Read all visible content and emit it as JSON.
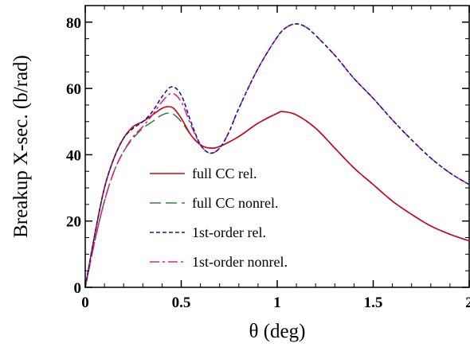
{
  "chart_data": {
    "type": "line",
    "title": "",
    "xlabel": "θ (deg)",
    "ylabel": "Breakup X-sec. (b/rad)",
    "xlim": [
      0,
      2
    ],
    "ylim": [
      0,
      85
    ],
    "xticks": [
      0,
      0.5,
      1,
      1.5,
      2
    ],
    "xtick_labels": [
      "0",
      "0.5",
      "1",
      "1.5",
      "2"
    ],
    "yticks": [
      0,
      20,
      40,
      60,
      80
    ],
    "ytick_labels": [
      "0",
      "20",
      "40",
      "60",
      "80"
    ],
    "grid": false,
    "legend_position": "center",
    "series": [
      {
        "name": "full CC rel.",
        "color": "#d0021b",
        "dash": "solid",
        "x": [
          0,
          0.05,
          0.1,
          0.15,
          0.2,
          0.25,
          0.3,
          0.35,
          0.4,
          0.43,
          0.46,
          0.5,
          0.55,
          0.6,
          0.65,
          0.7,
          0.8,
          0.9,
          1.0,
          1.03,
          1.1,
          1.2,
          1.3,
          1.4,
          1.5,
          1.6,
          1.7,
          1.8,
          1.9,
          2.0
        ],
        "y": [
          0,
          16,
          30,
          39,
          45,
          48.5,
          50,
          52,
          54,
          54.5,
          54,
          51,
          46,
          43,
          42,
          42.5,
          45.5,
          49.5,
          52.5,
          53,
          52,
          48,
          42,
          36,
          31,
          26,
          22,
          18.5,
          16,
          14
        ]
      },
      {
        "name": "full CC nonrel.",
        "color": "#3f7f3f",
        "dash": "longdash",
        "x": [
          0,
          0.05,
          0.1,
          0.15,
          0.2,
          0.25,
          0.3,
          0.35,
          0.4,
          0.45,
          0.5,
          0.55,
          0.6,
          0.65,
          0.7,
          0.8,
          0.9,
          1.0,
          1.03,
          1.1,
          1.2,
          1.3,
          1.4,
          1.5,
          1.6,
          1.7,
          1.8,
          1.9,
          2.0
        ],
        "y": [
          0,
          14,
          26,
          35,
          41,
          45,
          48,
          50,
          52,
          52.5,
          50,
          46,
          43,
          42,
          42.5,
          45.5,
          49.5,
          52.5,
          53,
          52,
          48,
          42,
          36,
          31,
          26,
          22,
          18.5,
          16,
          14
        ]
      },
      {
        "name": "1st-order rel.",
        "color": "#1a1a8c",
        "dash": "shortdash",
        "x": [
          0,
          0.05,
          0.1,
          0.15,
          0.2,
          0.25,
          0.3,
          0.35,
          0.4,
          0.45,
          0.5,
          0.55,
          0.6,
          0.65,
          0.7,
          0.75,
          0.8,
          0.9,
          1.0,
          1.05,
          1.1,
          1.15,
          1.2,
          1.3,
          1.4,
          1.5,
          1.6,
          1.7,
          1.8,
          1.9,
          2.0
        ],
        "y": [
          0,
          16,
          30,
          39,
          45,
          48,
          50,
          53,
          57.5,
          60.5,
          58,
          50,
          43,
          40.5,
          42,
          47,
          54,
          66,
          75.5,
          78.5,
          79.5,
          78.5,
          76,
          70,
          63,
          57,
          50.5,
          44.5,
          39,
          34.5,
          31
        ]
      },
      {
        "name": "1st-order nonrel.",
        "color": "#e0208a",
        "dash": "dashdot",
        "x": [
          0,
          0.05,
          0.1,
          0.15,
          0.2,
          0.25,
          0.3,
          0.35,
          0.4,
          0.45,
          0.5,
          0.55,
          0.6,
          0.65,
          0.7,
          0.75,
          0.8,
          0.9,
          1.0,
          1.05,
          1.1,
          1.15,
          1.2,
          1.3,
          1.4,
          1.5,
          1.6,
          1.7,
          1.8,
          1.9,
          2.0
        ],
        "y": [
          0,
          14,
          26,
          35,
          41,
          45.5,
          48.5,
          52,
          56,
          58.5,
          56,
          49,
          43,
          40.5,
          42,
          47,
          54,
          66,
          75.5,
          78.5,
          79.5,
          78.5,
          76,
          70,
          63,
          57,
          50.5,
          44.5,
          39,
          34.5,
          31
        ]
      }
    ]
  }
}
